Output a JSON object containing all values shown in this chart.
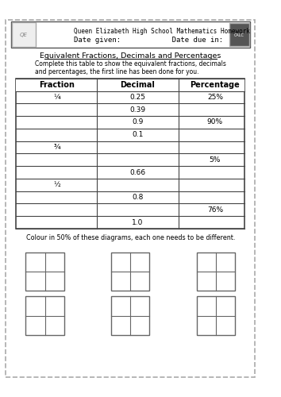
{
  "title_line1": "Queen Elizabeth High School Mathematics Homework",
  "title_line2": "Date given:            Date due in:",
  "section_title": "Equivalent Fractions, Decimals and Percentages",
  "instructions": "Complete this table to show the equivalent fractions, decimals\nand percentages, the first line has been done for you.",
  "table_headers": [
    "Fraction",
    "Decimal",
    "Percentage"
  ],
  "table_rows": [
    [
      "¼",
      "0.25",
      "25%"
    ],
    [
      "",
      "0.39",
      ""
    ],
    [
      "",
      "0.9",
      "90%"
    ],
    [
      "",
      "0.1",
      ""
    ],
    [
      "¾",
      "",
      ""
    ],
    [
      "",
      "",
      "5%"
    ],
    [
      "",
      "0.66",
      ""
    ],
    [
      "½",
      "",
      ""
    ],
    [
      "",
      "0.8",
      ""
    ],
    [
      "",
      "",
      "76%"
    ],
    [
      "",
      "1.0",
      ""
    ]
  ],
  "colour_instruction": "Colour in 50% of these diagrams, each one needs to be different.",
  "bg_color": "#ffffff",
  "border_color": "#888888",
  "table_line_color": "#555555",
  "text_color": "#000000",
  "header_color": "#000000"
}
